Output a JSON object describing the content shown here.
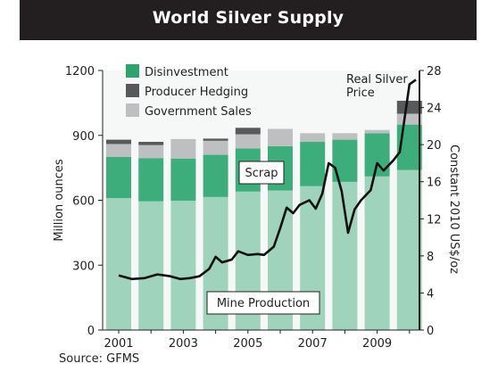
{
  "title": "World Silver Supply",
  "source": "Source: GFMS",
  "chart_data": {
    "type": "bar",
    "stacked": true,
    "title": "World Silver Supply",
    "x": [
      2001,
      2002,
      2003,
      2004,
      2005,
      2006,
      2007,
      2008,
      2009,
      2010
    ],
    "x_tick_labels": [
      "2001",
      "2003",
      "2005",
      "2007",
      "2009"
    ],
    "ylabel": "Million ounces",
    "ylim": [
      0,
      1200
    ],
    "y_ticks": [
      "0",
      "300",
      "600",
      "900",
      "1200"
    ],
    "y2label": "Constant 2010 US$/oz",
    "y2lim": [
      0,
      28
    ],
    "y2_ticks": [
      "0",
      "4",
      "8",
      "12",
      "16",
      "20",
      "24",
      "28"
    ],
    "legend": [
      "Disinvestment",
      "Producer Hedging",
      "Government Sales"
    ],
    "legend_position": "top-left",
    "series": [
      {
        "name": "Mine Production",
        "values": [
          610,
          595,
          598,
          615,
          640,
          645,
          665,
          685,
          710,
          740
        ],
        "color": "#9fd3bb"
      },
      {
        "name": "Scrap",
        "values": [
          190,
          200,
          195,
          195,
          200,
          205,
          205,
          195,
          200,
          210
        ],
        "color": "#3dae7b"
      },
      {
        "name": "Government Sales",
        "values": [
          60,
          60,
          90,
          65,
          65,
          80,
          40,
          30,
          15,
          50
        ],
        "color": "#bdbfc0"
      },
      {
        "name": "Producer Hedging",
        "values": [
          20,
          15,
          0,
          10,
          30,
          0,
          0,
          0,
          0,
          60
        ],
        "color": "#58595b"
      },
      {
        "name": "Disinvestment",
        "values": [
          0,
          0,
          0,
          0,
          0,
          0,
          0,
          0,
          0,
          0
        ],
        "color": "#2fa36f"
      }
    ],
    "line_series": {
      "name": "Real Silver Price",
      "axis": "right",
      "color": "#111111",
      "x": [
        2001.0,
        2001.4,
        2001.8,
        2002.2,
        2002.6,
        2002.9,
        2003.2,
        2003.5,
        2003.8,
        2004.0,
        2004.2,
        2004.5,
        2004.7,
        2005.0,
        2005.3,
        2005.5,
        2005.8,
        2006.0,
        2006.2,
        2006.4,
        2006.6,
        2006.9,
        2007.1,
        2007.3,
        2007.5,
        2007.7,
        2007.9,
        2008.1,
        2008.3,
        2008.5,
        2008.8,
        2009.0,
        2009.2,
        2009.5,
        2009.7,
        2010.0,
        2010.2
      ],
      "y": [
        5.9,
        5.5,
        5.6,
        6.0,
        5.8,
        5.5,
        5.6,
        5.8,
        6.6,
        7.9,
        7.3,
        7.6,
        8.5,
        8.1,
        8.2,
        8.1,
        9.0,
        11.0,
        13.2,
        12.6,
        13.5,
        14.0,
        13.1,
        14.7,
        18.0,
        17.5,
        15.0,
        10.5,
        13.0,
        14.0,
        15.1,
        18.0,
        17.2,
        18.3,
        19.2,
        26.5,
        27.0
      ]
    },
    "annotations": {
      "real_price": [
        "Real Silver",
        "Price"
      ],
      "scrap": "Scrap",
      "mine_production": "Mine Production"
    },
    "grid": false
  }
}
